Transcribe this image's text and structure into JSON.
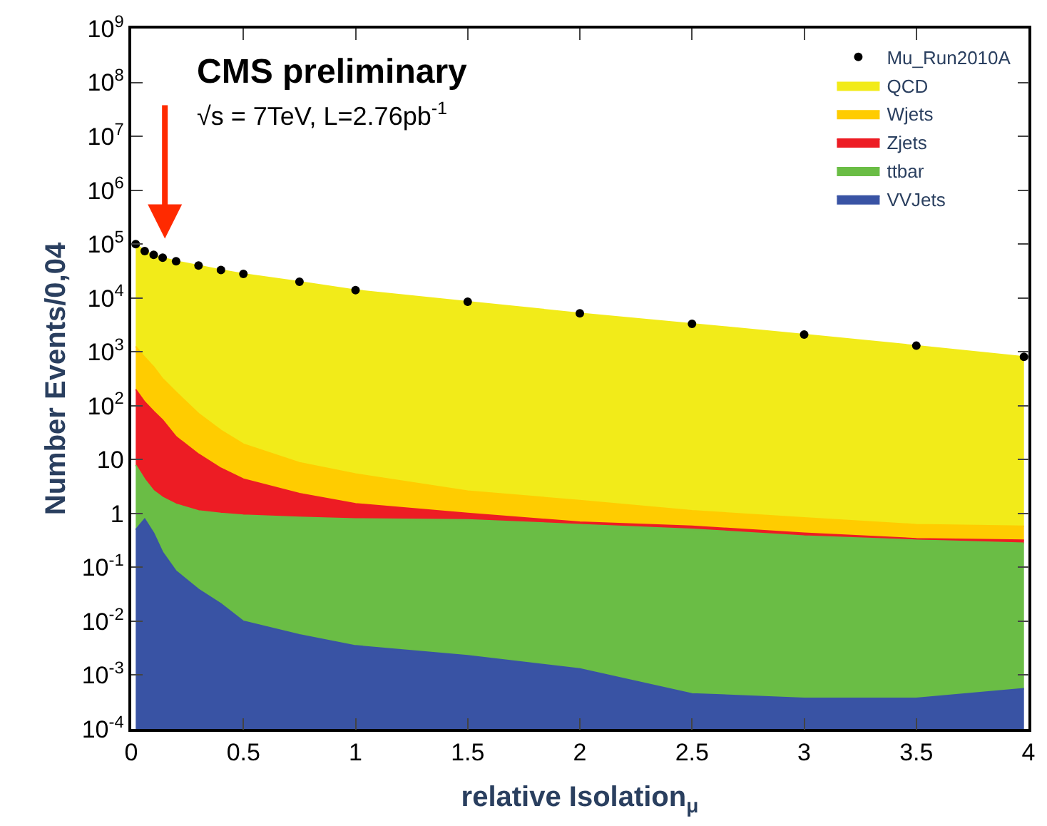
{
  "chart_data": {
    "type": "area",
    "stacked": true,
    "log": true,
    "legend": "top right",
    "xlabel": "relative Isolation$_{μ}$",
    "ylabel": "Number Events/0,04",
    "annotations": [
      "CMS preliminary",
      "√s = 7TeV, L=2.76pb$^{-1}$"
    ],
    "x": [
      0.02,
      0.06,
      0.1,
      0.14,
      0.2,
      0.3,
      0.4,
      0.5,
      0.75,
      1.0,
      1.5,
      2.0,
      2.5,
      3.0,
      3.5,
      3.98
    ],
    "xlim": [
      0,
      4
    ],
    "xticks": [
      0,
      0.5,
      1,
      1.5,
      2,
      2.5,
      3,
      3.5,
      4
    ],
    "ylim": [
      0.0001,
      1000000000
    ],
    "yticks": [
      {
        "value": 0.0001,
        "label": "10$^{-4}$"
      },
      {
        "value": 0.001,
        "label": "10$^{-3}$"
      },
      {
        "value": 0.01,
        "label": "10$^{-2}$"
      },
      {
        "value": 0.1,
        "label": "10$^{-1}$"
      },
      1,
      10,
      {
        "value": 100,
        "label": "10$^{2}$"
      },
      {
        "value": 1000,
        "label": "10$^{3}$"
      },
      {
        "value": 10000,
        "label": "10$^{4}$"
      },
      {
        "value": 100000,
        "label": "10$^{5}$"
      },
      {
        "value": 1000000,
        "label": "10$^{6}$"
      },
      {
        "value": 10000000,
        "label": "10$^{7}$"
      },
      {
        "value": 100000000,
        "label": "10$^{8}$"
      },
      {
        "value": 1000000000,
        "label": "10$^{9}$"
      }
    ],
    "series": [
      {
        "name": "Mu_Run2010A",
        "type": "scatter",
        "marker": "circle",
        "color": "#000000",
        "values": [
          100000,
          74000,
          63000,
          56000,
          48000,
          40000,
          33000,
          28000,
          20000,
          14000,
          8500,
          5200,
          3300,
          2100,
          1300,
          810
        ]
      },
      {
        "name": "VVJets",
        "color": "#3953a4",
        "values": [
          0.5,
          0.79,
          0.43,
          0.19,
          0.085,
          0.039,
          0.021,
          0.01,
          0.0056,
          0.0035,
          0.0023,
          0.0013,
          0.00045,
          0.00037,
          0.00037,
          0.00056
        ]
      },
      {
        "name": "ttbar",
        "color": "#6abd45",
        "values": [
          7.4,
          3.5,
          2.2,
          1.8,
          1.4,
          1.08,
          0.98,
          0.92,
          0.84,
          0.79,
          0.76,
          0.62,
          0.51,
          0.38,
          0.32,
          0.28
        ]
      },
      {
        "name": "Zjets",
        "color": "#ed1c24",
        "values": [
          192,
          113,
          76,
          52,
          25,
          11.5,
          5.9,
          3.4,
          1.5,
          0.72,
          0.24,
          0.07,
          0.07,
          0.05,
          0.02,
          0.04
        ]
      },
      {
        "name": "Wjets",
        "color": "#ffcc00",
        "values": [
          1060,
          677,
          446,
          262,
          152,
          59,
          28,
          15,
          6.4,
          3.9,
          1.6,
          1.05,
          0.54,
          0.4,
          0.28,
          0.26
        ]
      },
      {
        "name": "QCD",
        "color": "#f2eb19",
        "values": [
          98700,
          73200,
          62500,
          55700,
          47800,
          39900,
          32960,
          27980,
          19990,
          13990,
          8497,
          5198,
          3299,
          2099,
          1299,
          809
        ]
      }
    ]
  }
}
